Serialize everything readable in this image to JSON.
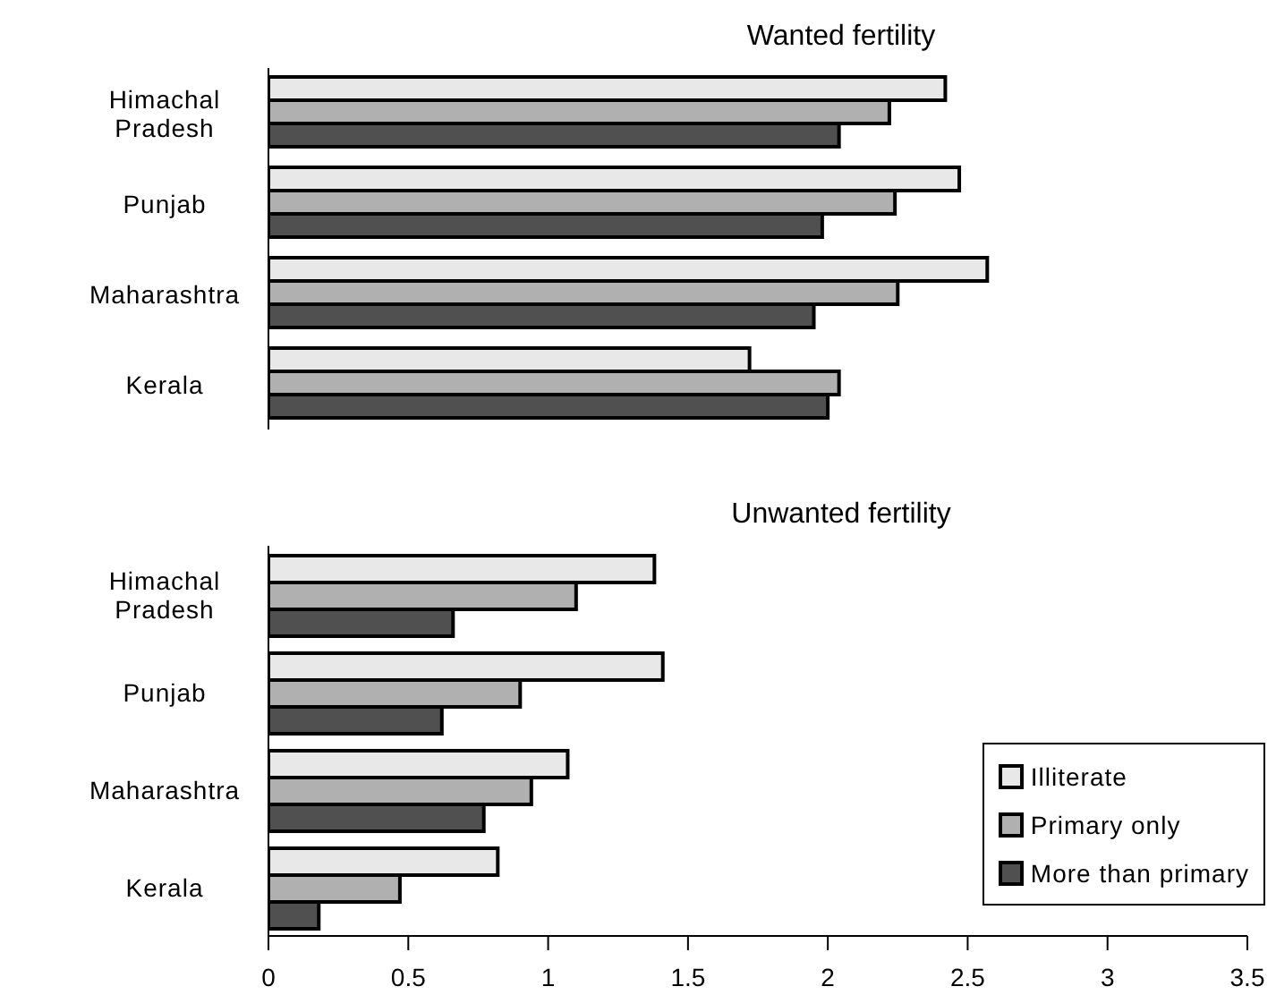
{
  "chart_data": [
    {
      "type": "bar",
      "orientation": "horizontal",
      "title": "Wanted fertility",
      "categories": [
        "Himachal Pradesh",
        "Punjab",
        "Maharashtra",
        "Kerala"
      ],
      "series": [
        {
          "color": "#e8e8e8",
          "values": [
            2.42,
            2.47,
            2.57,
            1.72
          ]
        },
        {
          "color": "#b0b0b0",
          "values": [
            2.22,
            2.24,
            2.25,
            2.04
          ]
        },
        {
          "color": "#505050",
          "values": [
            2.04,
            1.98,
            1.95,
            2.0
          ]
        }
      ],
      "xlim": [
        0,
        3.5
      ],
      "xticks": [
        0,
        0.5,
        1,
        1.5,
        2,
        2.5,
        3,
        3.5
      ],
      "tick_labels": "y",
      "grid": false,
      "legend": false
    },
    {
      "type": "bar",
      "orientation": "horizontal",
      "title": "Unwanted fertility",
      "categories": [
        "Himachal Pradesh",
        "Punjab",
        "Maharashtra",
        "Kerala"
      ],
      "series": [
        {
          "name": "Illiterate",
          "color": "#e8e8e8",
          "values": [
            1.38,
            1.41,
            1.07,
            0.82
          ]
        },
        {
          "name": "Primary only",
          "color": "#b0b0b0",
          "values": [
            1.1,
            0.9,
            0.94,
            0.47
          ]
        },
        {
          "name": "More than primary",
          "color": "#505050",
          "values": [
            0.66,
            0.62,
            0.77,
            0.18
          ]
        }
      ],
      "xlim": [
        0,
        3.5
      ],
      "xticks": [
        0,
        0.5,
        1,
        1.5,
        2,
        2.5,
        3,
        3.5
      ],
      "grid": false,
      "legend": "bottom right"
    }
  ]
}
